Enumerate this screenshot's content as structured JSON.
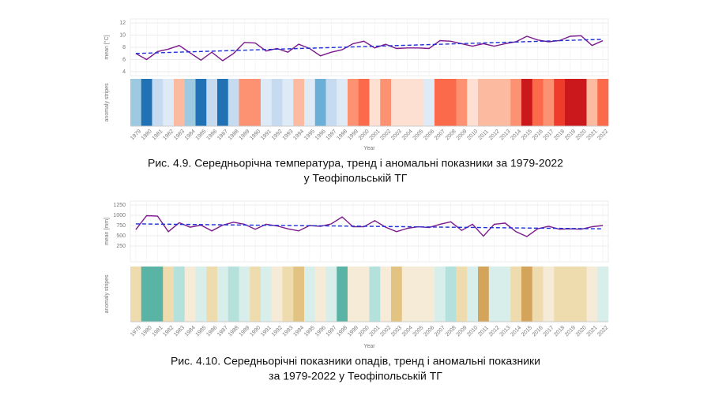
{
  "chart_data": [
    {
      "type": "line",
      "ylabel": "mean [°C]",
      "stripes_label": "anomaly stripes",
      "xlabel": "Year",
      "caption": [
        "Рис. 4.9. Середньорічна температура, тренд і аномальні показники за 1979-2022",
        "у Теофіпольській ТГ"
      ],
      "x": [
        1979,
        1980,
        1981,
        1982,
        1983,
        1984,
        1985,
        1986,
        1987,
        1988,
        1989,
        1990,
        1991,
        1992,
        1993,
        1994,
        1995,
        1996,
        1997,
        1998,
        1999,
        2000,
        2001,
        2002,
        2003,
        2004,
        2005,
        2006,
        2007,
        2008,
        2009,
        2010,
        2011,
        2012,
        2013,
        2014,
        2015,
        2016,
        2017,
        2018,
        2019,
        2020,
        2021,
        2022
      ],
      "values": [
        7.0,
        6.0,
        7.3,
        7.7,
        8.3,
        7.1,
        5.9,
        7.2,
        5.8,
        7.0,
        8.8,
        8.7,
        7.4,
        7.8,
        7.2,
        8.5,
        7.8,
        6.6,
        7.2,
        7.6,
        8.6,
        9.0,
        7.9,
        8.5,
        7.8,
        7.9,
        7.9,
        7.8,
        9.1,
        9.0,
        8.6,
        8.2,
        8.6,
        8.2,
        8.6,
        8.9,
        9.8,
        9.2,
        8.9,
        9.1,
        9.8,
        9.9,
        8.3,
        9.1
      ],
      "color": "#7b1a8c",
      "stripe_colors": [
        "#9ecae1",
        "#2171b5",
        "#c6dbef",
        "#deebf7",
        "#fcbba1",
        "#9ecae1",
        "#2171b5",
        "#c6dbef",
        "#2171b5",
        "#c6dbef",
        "#fc9272",
        "#fc9272",
        "#deebf7",
        "#c6dbef",
        "#deebf7",
        "#fcbba1",
        "#deebf7",
        "#6baed6",
        "#c6dbef",
        "#deebf7",
        "#fc9272",
        "#fb6a4a",
        "#fee0d2",
        "#fc9272",
        "#fee0d2",
        "#fee0d2",
        "#fee0d2",
        "#deebf7",
        "#fb6a4a",
        "#fb6a4a",
        "#fc9272",
        "#fee0d2",
        "#fcbba1",
        "#fcbba1",
        "#fcbba1",
        "#fc9272",
        "#cb181d",
        "#fb6a4a",
        "#fc9272",
        "#ef3b2c",
        "#cb181d",
        "#cb181d",
        "#fcbba1",
        "#fb6a4a"
      ],
      "trend": {
        "x": [
          1979,
          2022
        ],
        "values": [
          7.0,
          9.3
        ],
        "color": "#1f2fd0"
      },
      "xlim": [
        1978.5,
        2022.5
      ],
      "ylim": [
        4,
        12
      ],
      "yticks": [
        4,
        6,
        8,
        10,
        12
      ],
      "grid": true
    },
    {
      "type": "line",
      "ylabel": "mean [mm]",
      "stripes_label": "anomaly stripes",
      "xlabel": "Year",
      "caption": [
        "Рис. 4.10. Середньорічні показники опадів, тренд і аномальні показники",
        "за 1979-2022 у Теофіпольській ТГ"
      ],
      "x": [
        1979,
        1980,
        1981,
        1982,
        1983,
        1984,
        1985,
        1986,
        1987,
        1988,
        1989,
        1990,
        1991,
        1992,
        1993,
        1994,
        1995,
        1996,
        1997,
        1998,
        1999,
        2000,
        2001,
        2002,
        2003,
        2004,
        2005,
        2006,
        2007,
        2008,
        2009,
        2010,
        2011,
        2012,
        2013,
        2014,
        2015,
        2016,
        2017,
        2018,
        2019,
        2020,
        2021,
        2022
      ],
      "values": [
        650,
        990,
        980,
        600,
        820,
        710,
        760,
        620,
        760,
        830,
        780,
        660,
        780,
        740,
        670,
        620,
        750,
        730,
        790,
        960,
        720,
        720,
        870,
        710,
        600,
        680,
        720,
        700,
        780,
        840,
        630,
        780,
        490,
        780,
        810,
        600,
        480,
        670,
        730,
        660,
        670,
        660,
        720,
        750
      ],
      "color": "#7b1a8c",
      "stripe_colors": [
        "#efdcae",
        "#5ab4a5",
        "#5ab4a5",
        "#efdcae",
        "#b5e1dc",
        "#f5ebd6",
        "#d8eeeb",
        "#efdcae",
        "#d8eeeb",
        "#b5e1dc",
        "#d8eeeb",
        "#efdcae",
        "#d8eeeb",
        "#f5ebd6",
        "#efdcae",
        "#e2c381",
        "#d8eeeb",
        "#f5ebd6",
        "#d8eeeb",
        "#5ab4a5",
        "#f5ebd6",
        "#f5ebd6",
        "#b5e1dc",
        "#f5ebd6",
        "#e2c381",
        "#f5ebd6",
        "#f5ebd6",
        "#f5ebd6",
        "#d8eeeb",
        "#b5e1dc",
        "#efdcae",
        "#d8eeeb",
        "#d4a45a",
        "#d8eeeb",
        "#d8eeeb",
        "#efdcae",
        "#d4a45a",
        "#efdcae",
        "#f5ebd6",
        "#efdcae",
        "#efdcae",
        "#efdcae",
        "#f5ebd6",
        "#d8eeeb"
      ],
      "trend": {
        "x": [
          1979,
          2022
        ],
        "values": [
          790,
          670
        ],
        "color": "#1f2fd0"
      },
      "xlim": [
        1978.5,
        2022.5
      ],
      "ylim": [
        250,
        1250
      ],
      "yticks": [
        250,
        500,
        750,
        1000,
        1250
      ],
      "grid": true
    }
  ]
}
